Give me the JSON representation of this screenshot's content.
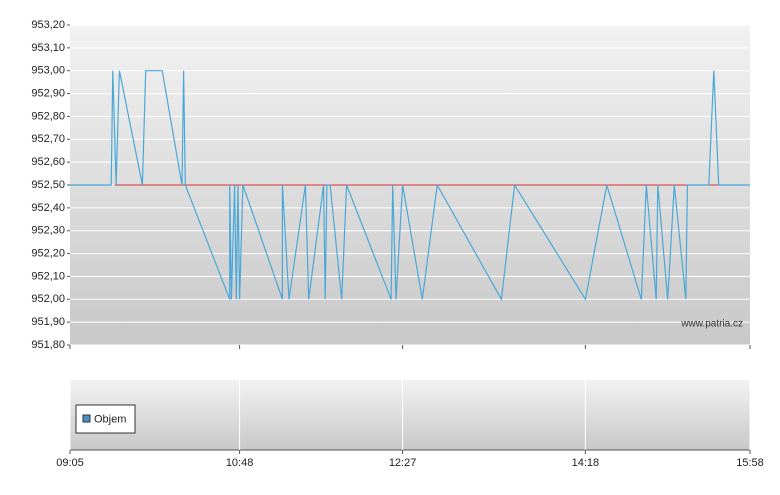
{
  "chart_data": [
    {
      "type": "line",
      "x": [
        "09:05",
        "09:30",
        "09:31",
        "09:33",
        "09:35",
        "09:49",
        "09:51",
        "10:01",
        "10:13",
        "10:14",
        "10:15",
        "10:42",
        "10:42",
        "10:43",
        "10:45",
        "10:46",
        "10:47",
        "10:48",
        "10:50",
        "11:14",
        "11:14",
        "11:18",
        "11:28",
        "11:30",
        "11:39",
        "11:40",
        "11:41",
        "11:43",
        "11:50",
        "11:53",
        "12:20",
        "12:21",
        "12:23",
        "12:27",
        "12:39",
        "12:48",
        "13:27",
        "13:35",
        "14:18",
        "14:31",
        "14:52",
        "14:55",
        "15:01",
        "15:02",
        "15:08",
        "15:12",
        "15:19",
        "15:20",
        "15:33",
        "15:36",
        "15:39",
        "15:58"
      ],
      "series": [
        {
          "color": "#4aa8d8",
          "values": [
            952.5,
            952.5,
            953.0,
            952.5,
            953.0,
            952.5,
            953.0,
            953.0,
            952.5,
            953.0,
            952.5,
            952.0,
            952.5,
            952.0,
            952.5,
            952.0,
            952.5,
            952.0,
            952.5,
            952.0,
            952.5,
            952.0,
            952.5,
            952.0,
            952.5,
            952.0,
            952.5,
            952.5,
            952.0,
            952.5,
            952.0,
            952.5,
            952.0,
            952.5,
            952.0,
            952.5,
            952.0,
            952.5,
            952.0,
            952.5,
            952.0,
            952.5,
            952.0,
            952.5,
            952.0,
            952.5,
            952.0,
            952.5,
            952.5,
            953.0,
            952.5,
            952.5
          ]
        }
      ],
      "reference_line": {
        "y": 952.5,
        "x": [
          "09:32",
          "15:39"
        ],
        "color": "#e03030"
      },
      "xlim": [
        "09:05",
        "15:58"
      ],
      "ylim": [
        951.8,
        953.2
      ],
      "yticks": [
        {
          "value": 951.8,
          "label": "951,80"
        },
        {
          "value": 951.9,
          "label": "951,90"
        },
        {
          "value": 952.0,
          "label": "952,00"
        },
        {
          "value": 952.1,
          "label": "952,10"
        },
        {
          "value": 952.2,
          "label": "952,20"
        },
        {
          "value": 952.3,
          "label": "952,30"
        },
        {
          "value": 952.4,
          "label": "952,40"
        },
        {
          "value": 952.5,
          "label": "952,50"
        },
        {
          "value": 952.6,
          "label": "952,60"
        },
        {
          "value": 952.7,
          "label": "952,70"
        },
        {
          "value": 952.8,
          "label": "952,80"
        },
        {
          "value": 952.9,
          "label": "952,90"
        },
        {
          "value": 953.0,
          "label": "953,00"
        },
        {
          "value": 953.1,
          "label": "953,10"
        },
        {
          "value": 953.2,
          "label": "953,20"
        }
      ],
      "grid": true,
      "watermark": "www.patria.cz"
    },
    {
      "type": "bar",
      "series": [
        {
          "name": "Objem",
          "color": "#4a90c8",
          "values": []
        }
      ],
      "xlim": [
        "09:05",
        "15:58"
      ],
      "xticks": [
        "09:05",
        "10:48",
        "12:27",
        "14:18",
        "15:58"
      ],
      "grid": true
    }
  ]
}
